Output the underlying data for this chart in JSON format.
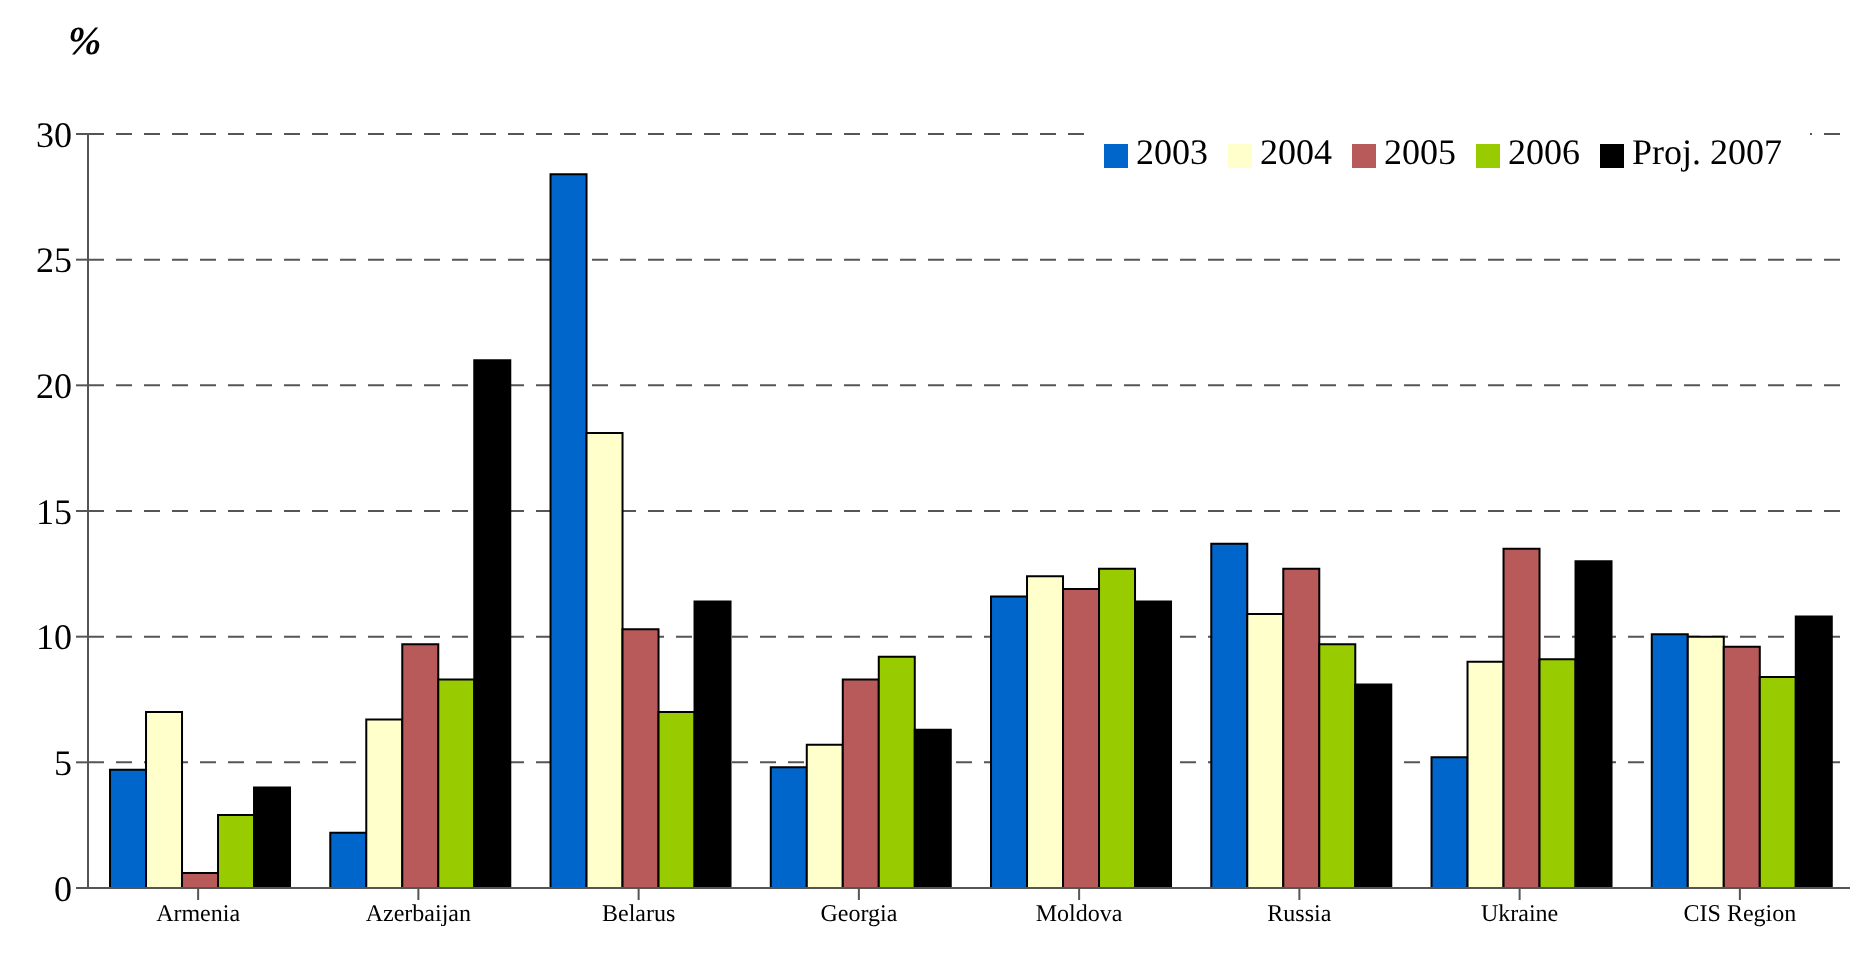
{
  "chart_data": {
    "type": "bar",
    "ylabel": "%",
    "categories": [
      "Armenia",
      "Azerbaijan",
      "Belarus",
      "Georgia",
      "Moldova",
      "Russia",
      "Ukraine",
      "CIS Region"
    ],
    "series": [
      {
        "name": "2003",
        "color": "#0066cc",
        "values": [
          4.7,
          2.2,
          28.4,
          4.8,
          11.6,
          13.7,
          5.2,
          10.1
        ]
      },
      {
        "name": "2004",
        "color": "#ffffcc",
        "values": [
          7.0,
          6.7,
          18.1,
          5.7,
          12.4,
          10.9,
          9.0,
          10.0
        ]
      },
      {
        "name": "2005",
        "color": "#b85a5a",
        "values": [
          0.6,
          9.7,
          10.3,
          8.3,
          11.9,
          12.7,
          13.5,
          9.6
        ]
      },
      {
        "name": "2006",
        "color": "#99cc00",
        "values": [
          2.9,
          8.3,
          7.0,
          9.2,
          12.7,
          9.7,
          9.1,
          8.4
        ]
      },
      {
        "name": "Proj. 2007",
        "color": "#000000",
        "values": [
          4.0,
          21.0,
          11.4,
          6.3,
          11.4,
          8.1,
          13.0,
          10.8
        ]
      }
    ],
    "ylim": [
      0,
      30
    ],
    "yticks": [
      0,
      5,
      10,
      15,
      20,
      25,
      30
    ],
    "grid": "y",
    "legend": "top right"
  }
}
